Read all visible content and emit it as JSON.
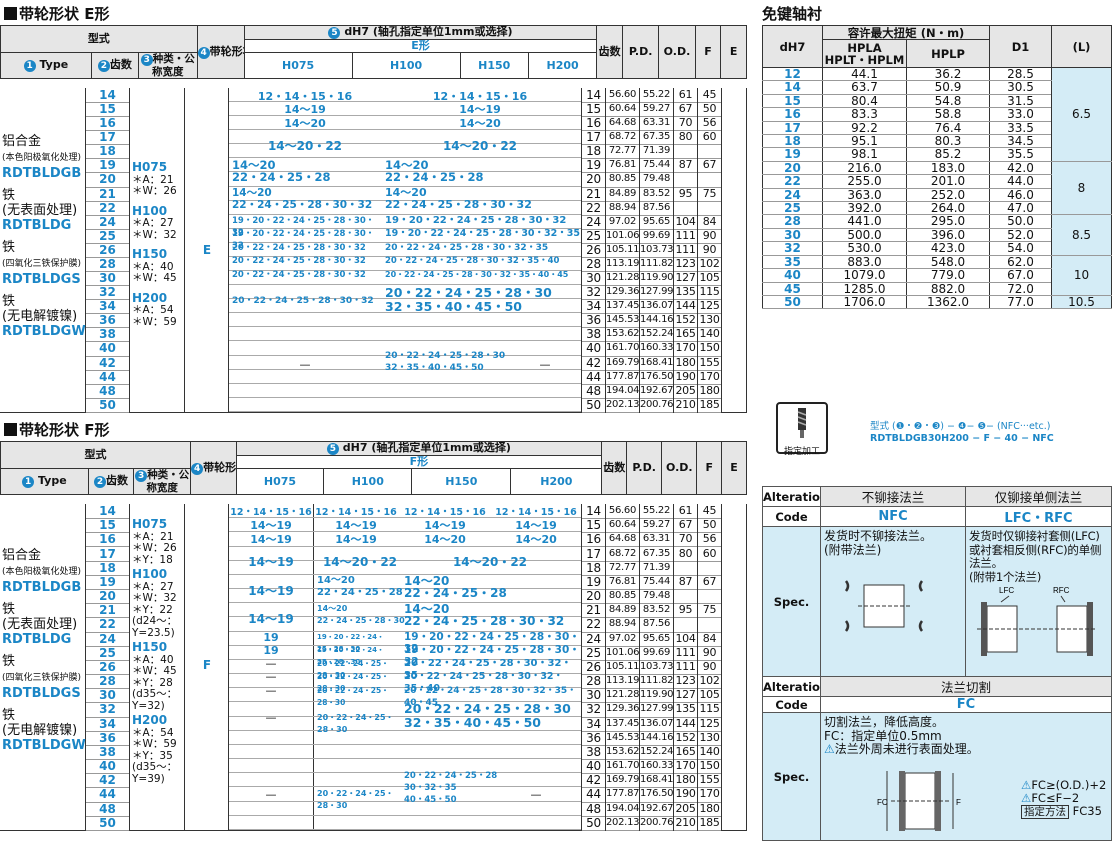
{
  "e_section": {
    "title": "带轮形状 E形",
    "h_type_cn": "型式",
    "h_type": "Type",
    "h_teeth": "齿数",
    "h_kind": "种类・公称宽度",
    "h_shape": "带轮形状",
    "h_bore": "dH7 (轴孔指定单位1mm或选择)",
    "h_bore_shape": "E形",
    "h_cols": [
      "H075",
      "H100",
      "H150",
      "H200"
    ],
    "h_teeth2": "齿数",
    "h_pd": "P.D.",
    "h_od": "O.D.",
    "h_f": "F",
    "h_e": "E",
    "shape_value": "E",
    "kinds": [
      {
        "name": "H075",
        "a": "＊A：21",
        "w": "＊W：26"
      },
      {
        "name": "H100",
        "a": "＊A：27",
        "w": "＊W：32"
      },
      {
        "name": "H150",
        "a": "＊A：40",
        "w": "＊W：45"
      },
      {
        "name": "H200",
        "a": "＊A：54",
        "w": "＊W：59"
      }
    ],
    "teeth": [
      "14",
      "15",
      "16",
      "17",
      "18",
      "19",
      "20",
      "21",
      "22",
      "24",
      "25",
      "26",
      "28",
      "30",
      "32",
      "34",
      "36",
      "38",
      "40",
      "42",
      "44",
      "48",
      "50"
    ],
    "bores": {
      "r14_h075_h100": "12・14・15・16",
      "r14_h150_h200": "12・14・15・16",
      "r15_a": "14～19",
      "r15_b": "14～19",
      "r16_a": "14～20",
      "r16_b": "14～20",
      "r17_a": "14～20・22",
      "r17_b": "14～20・22",
      "r19_a": "14～20\n22・24・25・28",
      "r19_b": "14～20\n22・24・25・28",
      "r21_a": "14～20\n22・24・25・28・30・32",
      "r21_b": "14～20\n22・24・25・28・30・32",
      "r24_a": "19・20・22・24・25・28・30・32",
      "r24_b": "19・20・22・24・25・28・30・32",
      "r25_a": "19・20・22・24・25・28・30・32",
      "r25_b": "19・20・22・24・25・28・30・32・35",
      "r26_a": "20・22・24・25・28・30・32",
      "r26_b": "20・22・24・25・28・30・32・35",
      "r28_a": "20・22・24・25・28・30・32",
      "r28_b": "20・22・24・25・28・30・32・35・40",
      "r30_a": "20・22・24・25・28・30・32",
      "r30_b": "20・22・24・25・28・30・32・35・40・45",
      "r32_a": "20・22・24・25・28・30・32",
      "r32_b": "20・22・24・25・28・30\n32・35・40・45・50",
      "r38_dash": "—",
      "r38_b": "20・22・24・25・28・30\n32・35・40・45・50",
      "r38_dash2": "—"
    },
    "spec_rows": [
      [
        "14",
        "56.60",
        "55.22",
        "61",
        "45"
      ],
      [
        "15",
        "60.64",
        "59.27",
        "67",
        "50"
      ],
      [
        "16",
        "64.68",
        "63.31",
        "70",
        "56"
      ],
      [
        "17",
        "68.72",
        "67.35",
        "80",
        "60"
      ],
      [
        "18",
        "72.77",
        "71.39",
        "",
        ""
      ],
      [
        "19",
        "76.81",
        "75.44",
        "87",
        "67"
      ],
      [
        "20",
        "80.85",
        "79.48",
        "",
        ""
      ],
      [
        "21",
        "84.89",
        "83.52",
        "95",
        "75"
      ],
      [
        "22",
        "88.94",
        "87.56",
        "",
        ""
      ],
      [
        "24",
        "97.02",
        "95.65",
        "104",
        "84"
      ],
      [
        "25",
        "101.06",
        "99.69",
        "111",
        "90"
      ],
      [
        "26",
        "105.11",
        "103.73",
        "111",
        "90"
      ],
      [
        "28",
        "113.19",
        "111.82",
        "123",
        "102"
      ],
      [
        "30",
        "121.28",
        "119.90",
        "127",
        "105"
      ],
      [
        "32",
        "129.36",
        "127.99",
        "135",
        "115"
      ],
      [
        "34",
        "137.45",
        "136.07",
        "144",
        "125"
      ],
      [
        "36",
        "145.53",
        "144.16",
        "152",
        "130"
      ],
      [
        "38",
        "153.62",
        "152.24",
        "165",
        "140"
      ],
      [
        "40",
        "161.70",
        "160.33",
        "170",
        "150"
      ],
      [
        "42",
        "169.79",
        "168.41",
        "180",
        "155"
      ],
      [
        "44",
        "177.87",
        "176.50",
        "190",
        "170"
      ],
      [
        "48",
        "194.04",
        "192.67",
        "205",
        "180"
      ],
      [
        "50",
        "202.13",
        "200.76",
        "210",
        "185"
      ]
    ]
  },
  "materials": [
    {
      "cn": "铝合金",
      "note": "(本色阳极氧化处理)",
      "code": "RDTBLDGB"
    },
    {
      "cn": "铁",
      "note": "(无表面处理)",
      "code": "RDTBLDG"
    },
    {
      "cn": "铁",
      "note": "(四氧化三铁保护膜)",
      "code": "RDTBLDGS"
    },
    {
      "cn": "铁",
      "note": "(无电解镀镍)",
      "code": "RDTBLDGW"
    }
  ],
  "f_section": {
    "title": "带轮形状 F形",
    "h_bore_shape": "F形",
    "shape_value": "F",
    "kinds": [
      {
        "name": "H075",
        "l1": "＊A：21",
        "l2": "＊W：26",
        "l3": "＊Y：18"
      },
      {
        "name": "H100",
        "l1": "＊A：27",
        "l2": "＊W：32",
        "l3": "＊Y：22",
        "l4": "(d24～：",
        "l5": "Y=23.5)"
      },
      {
        "name": "H150",
        "l1": "＊A：40",
        "l2": "＊W：45",
        "l3": "＊Y：28",
        "l4": "(d35～：",
        "l5": "Y=32)"
      },
      {
        "name": "H200",
        "l1": "＊A：54",
        "l2": "＊W：59",
        "l3": "＊Y：35",
        "l4": "(d35～：",
        "l5": "Y=39)"
      }
    ],
    "bores": {
      "r14": "12・14・15・16",
      "r15_075": "14～19",
      "r15_100": "14～19",
      "r15_150": "14～19",
      "r15_200": "14～19",
      "r16_075": "14～19",
      "r16_100": "14～19",
      "r16_150": "14～20",
      "r16_200": "14～20",
      "r17_075": "14～19",
      "r17_100": "14～20・22",
      "r17_rest": "14～20・22",
      "r19_075": "14～19",
      "r19_100": "14～20\n22・24・25・28",
      "r19_rest": "14～20\n22・24・25・28",
      "r21_075": "14～19",
      "r21_100": "14～20\n22・24・25・28・30",
      "r21_rest": "14～20\n22・24・25・28・30・32",
      "r24_075": "19",
      "r24_100": "19・20・22・24・25・28・30",
      "r24_rest": "19・20・22・24・25・28・30・32",
      "r25_075": "19",
      "r25_100": "19・20・22・24・25・28・30",
      "r25_rest": "19・20・22・24・25・28・30・32",
      "r26_075": "—",
      "r26_100": "20・22・24・25・28・30",
      "r26_rest": "20・22・24・25・28・30・32・35",
      "r28_075": "—",
      "r28_100": "20・22・24・25・28・30",
      "r28_rest": "20・22・24・25・28・30・32・35・40",
      "r30_075": "—",
      "r30_100": "20・22・24・25・28・30",
      "r30_rest": "20・22・24・25・28・30・32・35・40・45",
      "r32_075": "—",
      "r32_100": "20・22・24・25・28・30",
      "r32_rest": "20・22・24・25・28・30\n32・35・40・45・50",
      "r38_075": "—",
      "r38_100": "20・22・24・25・28・30",
      "r38_150": "20・22・24・25・28\n30・32・35\n40・45・50",
      "r38_200": "—"
    }
  },
  "shaft": {
    "title": "免键轴衬",
    "h_d": "dH7",
    "h_torque": "容许最大扭矩 (N・m)",
    "h_hpla": "HPLA\nHPLT・HPLM",
    "h_hplp": "HPLP",
    "h_d1": "D1",
    "h_l": "(L)",
    "rows": [
      [
        "12",
        "44.1",
        "36.2",
        "28.5"
      ],
      [
        "14",
        "63.7",
        "50.9",
        "30.5"
      ],
      [
        "15",
        "80.4",
        "54.8",
        "31.5"
      ],
      [
        "16",
        "83.3",
        "58.8",
        "33.0"
      ],
      [
        "17",
        "92.2",
        "76.4",
        "33.5"
      ],
      [
        "18",
        "95.1",
        "80.3",
        "34.5"
      ],
      [
        "19",
        "98.1",
        "85.2",
        "35.5"
      ],
      [
        "20",
        "216.0",
        "183.0",
        "42.0"
      ],
      [
        "22",
        "255.0",
        "201.0",
        "44.0"
      ],
      [
        "24",
        "363.0",
        "252.0",
        "46.0"
      ],
      [
        "25",
        "392.0",
        "264.0",
        "47.0"
      ],
      [
        "28",
        "441.0",
        "295.0",
        "50.0"
      ],
      [
        "30",
        "500.0",
        "396.0",
        "52.0"
      ],
      [
        "32",
        "530.0",
        "423.0",
        "54.0"
      ],
      [
        "35",
        "883.0",
        "548.0",
        "62.0"
      ],
      [
        "40",
        "1079.0",
        "779.0",
        "67.0"
      ],
      [
        "45",
        "1285.0",
        "882.0",
        "72.0"
      ],
      [
        "50",
        "1706.0",
        "1362.0",
        "77.0"
      ]
    ],
    "l_values": [
      "6.5",
      "8",
      "8.5",
      "10",
      "10.5"
    ]
  },
  "order": {
    "label": "指定加工",
    "line1": "型式 (❶・❷・❸) − ❹− ❺− (NFC···etc.)",
    "line2": "RDTBLDGB30H200 − F − 40 − NFC"
  },
  "alterations": {
    "lab_alt": "Alterations",
    "lab_code": "Code",
    "lab_spec": "Spec.",
    "col1_head": "不铆接法兰",
    "col2_head": "仅铆接单侧法兰",
    "col1_code": "NFC",
    "col2_code": "LFC・RFC",
    "col1_spec": "发货时不铆接法兰。\n(附带法兰)",
    "col2_spec": "发货时仅铆接衬套侧(LFC)或衬套相反侧(RFC)的单侧法兰。\n(附带1个法兰)",
    "lfc": "LFC",
    "rfc": "RFC",
    "lab_alt2": "Alteration",
    "fc_head": "法兰切割",
    "fc_code": "FC",
    "fc_spec1": "切割法兰，降低高度。",
    "fc_spec2": "FC：指定单位0.5mm",
    "fc_spec3": "法兰外周未进行表面处理。",
    "fc_cond1": "FC≥(O.D.)+2",
    "fc_cond2": "FC≤F−2",
    "fc_method_label": "指定方法",
    "fc_method": "FC35",
    "fc_dim_label": "FC",
    "fc_f_label": "F"
  }
}
